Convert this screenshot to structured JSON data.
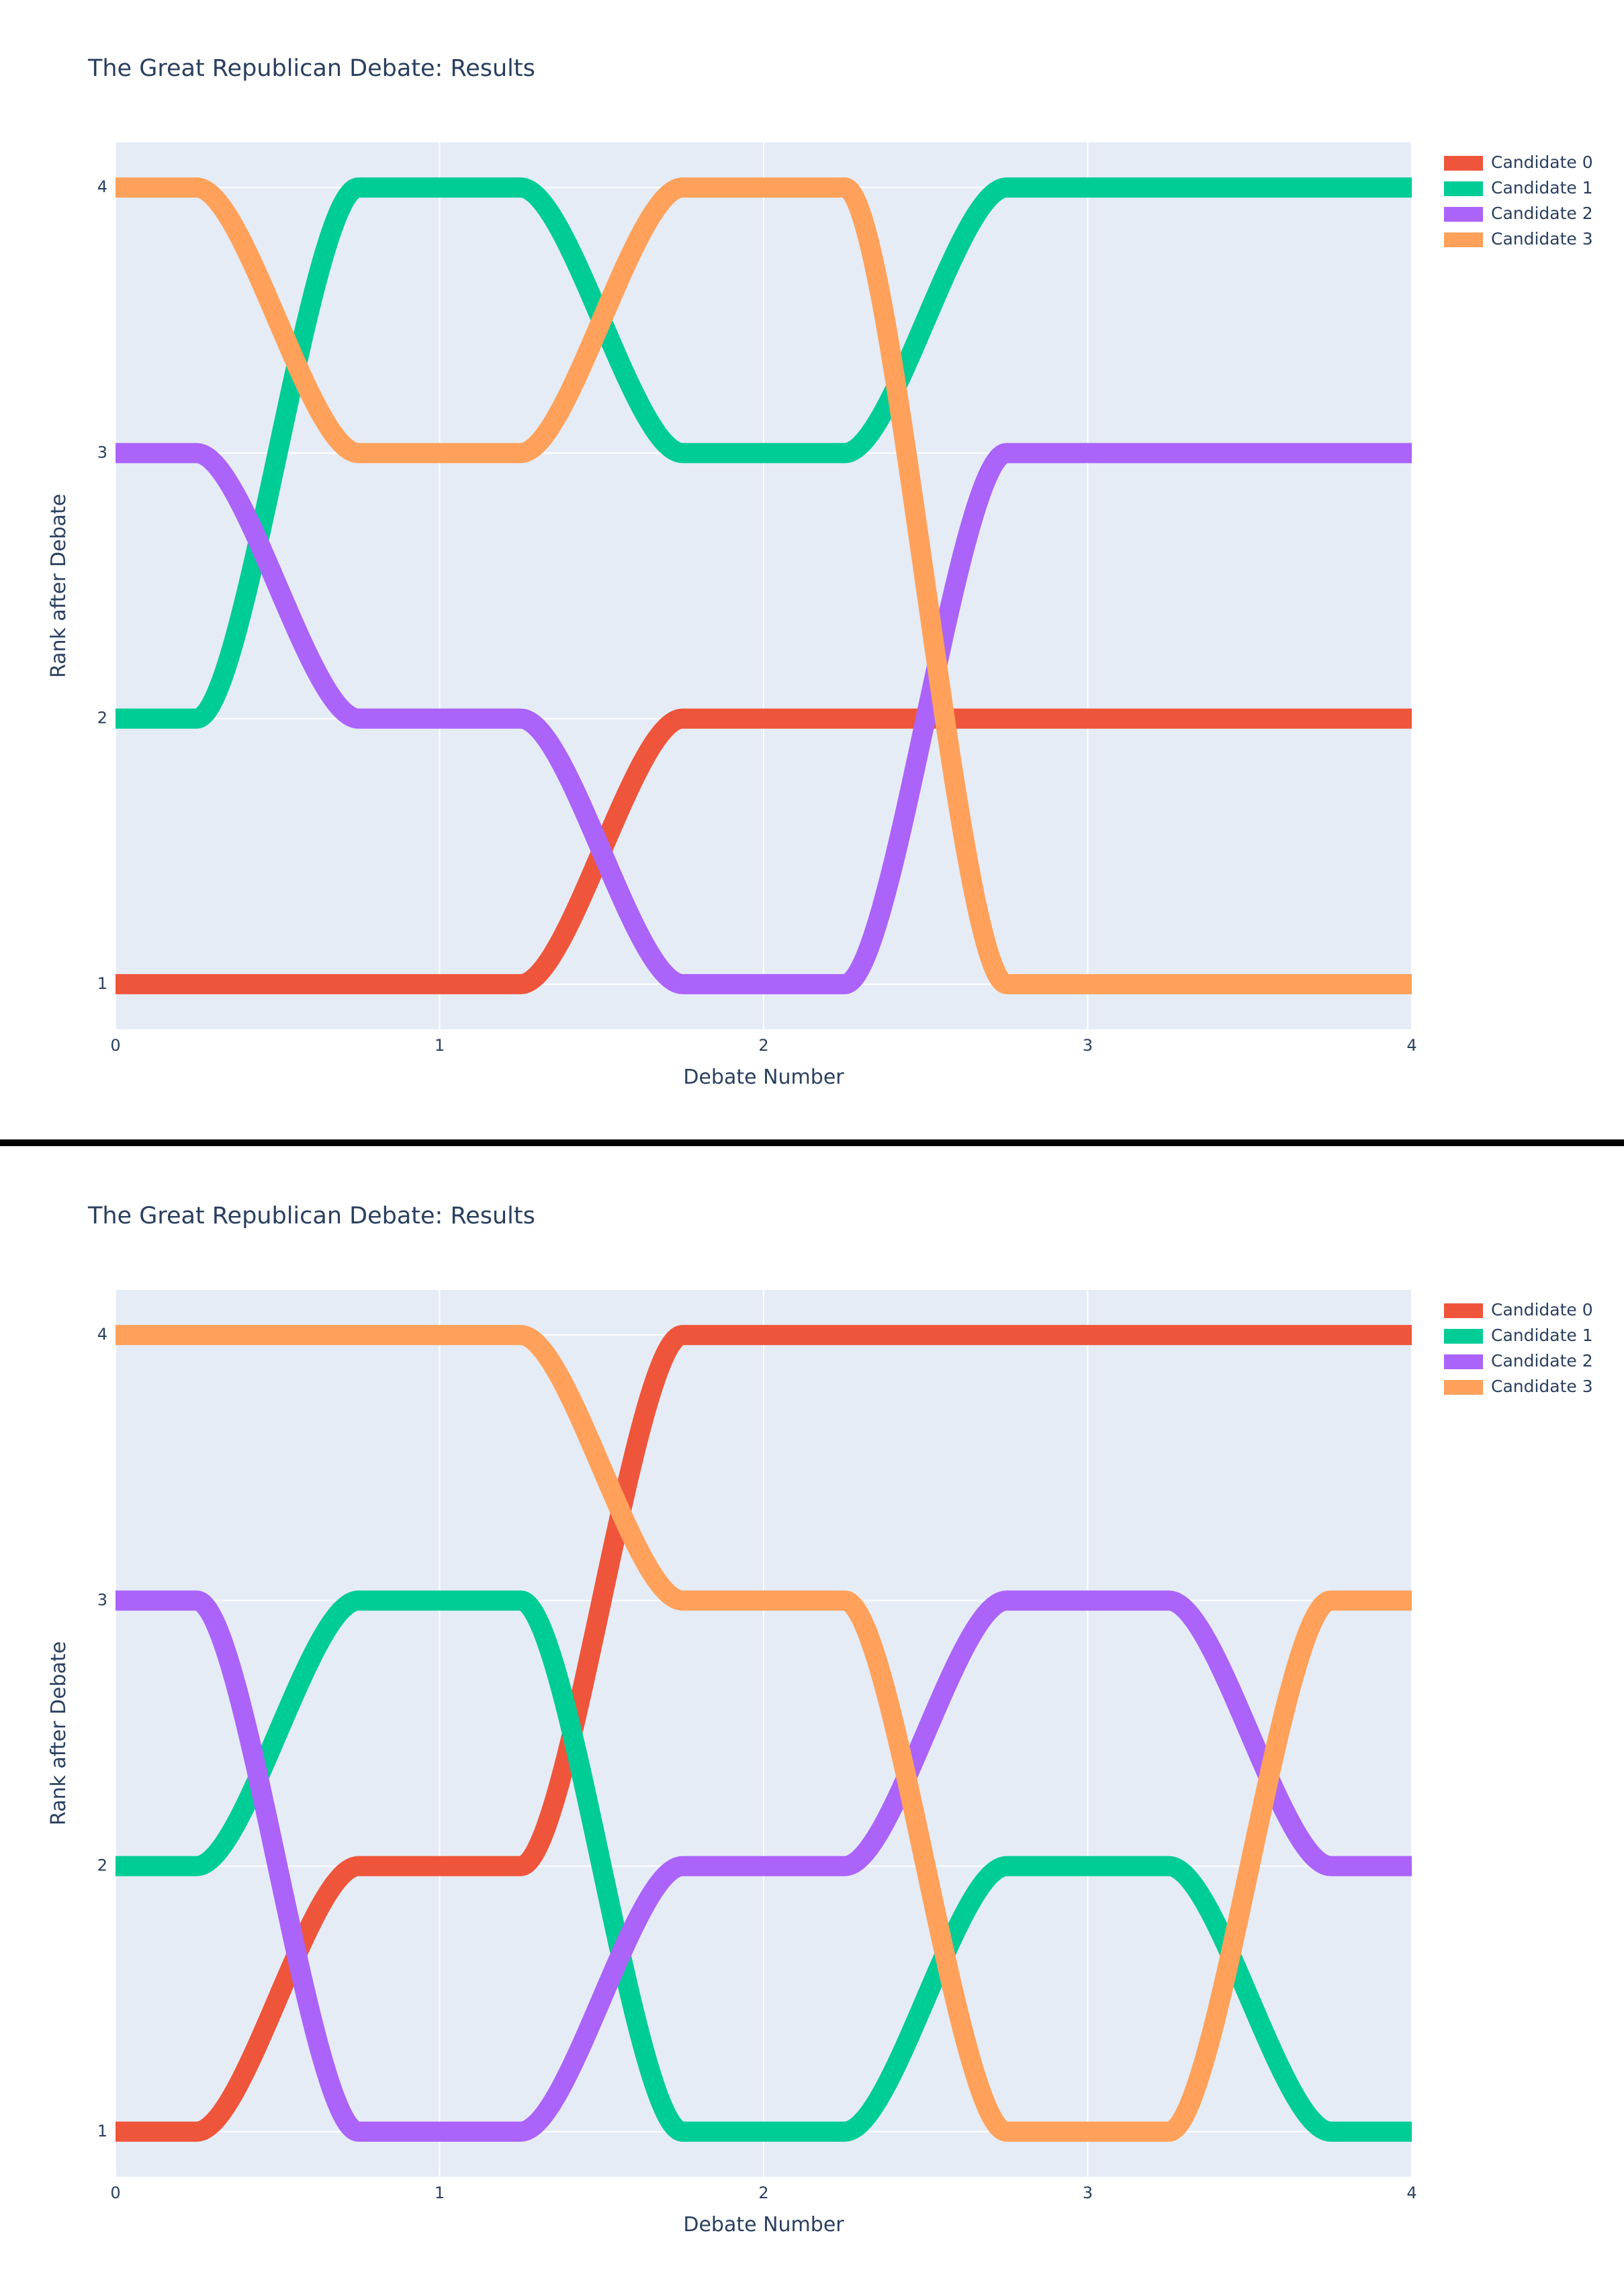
{
  "chart_data": [
    {
      "type": "line",
      "title": "The Great Republican Debate: Results",
      "xlabel": "Debate Number",
      "ylabel": "Rank after Debate",
      "xlim": [
        0,
        4
      ],
      "ylim": [
        0.83,
        4.17
      ],
      "x_ticks": [
        "0",
        "1",
        "2",
        "3",
        "4"
      ],
      "y_ticks": [
        "1",
        "2",
        "3",
        "4"
      ],
      "grid": true,
      "legend_position": "top-right",
      "x": [
        0,
        1,
        2,
        3,
        4
      ],
      "series": [
        {
          "name": "Candidate 0",
          "color": "#EF553B",
          "values": [
            1,
            1,
            2,
            2,
            2
          ]
        },
        {
          "name": "Candidate 1",
          "color": "#00CC96",
          "values": [
            2,
            4,
            3,
            4,
            4
          ]
        },
        {
          "name": "Candidate 2",
          "color": "#AB63FA",
          "values": [
            3,
            2,
            1,
            3,
            3
          ]
        },
        {
          "name": "Candidate 3",
          "color": "#FFA15A",
          "values": [
            4,
            3,
            4,
            1,
            1
          ]
        }
      ]
    },
    {
      "type": "line",
      "title": "The Great Republican Debate: Results",
      "xlabel": "Debate Number",
      "ylabel": "Rank after Debate",
      "xlim": [
        0,
        4
      ],
      "ylim": [
        0.83,
        4.17
      ],
      "x_ticks": [
        "0",
        "1",
        "2",
        "3",
        "4"
      ],
      "y_ticks": [
        "1",
        "2",
        "3",
        "4"
      ],
      "grid": true,
      "legend_position": "top-right",
      "x": [
        0,
        1,
        2,
        3,
        4
      ],
      "series": [
        {
          "name": "Candidate 0",
          "color": "#EF553B",
          "values": [
            1,
            2,
            4,
            4,
            4
          ]
        },
        {
          "name": "Candidate 1",
          "color": "#00CC96",
          "values": [
            2,
            3,
            1,
            2,
            1
          ]
        },
        {
          "name": "Candidate 2",
          "color": "#AB63FA",
          "values": [
            3,
            1,
            2,
            3,
            2
          ]
        },
        {
          "name": "Candidate 3",
          "color": "#FFA15A",
          "values": [
            4,
            4,
            3,
            1,
            3
          ]
        }
      ]
    }
  ]
}
